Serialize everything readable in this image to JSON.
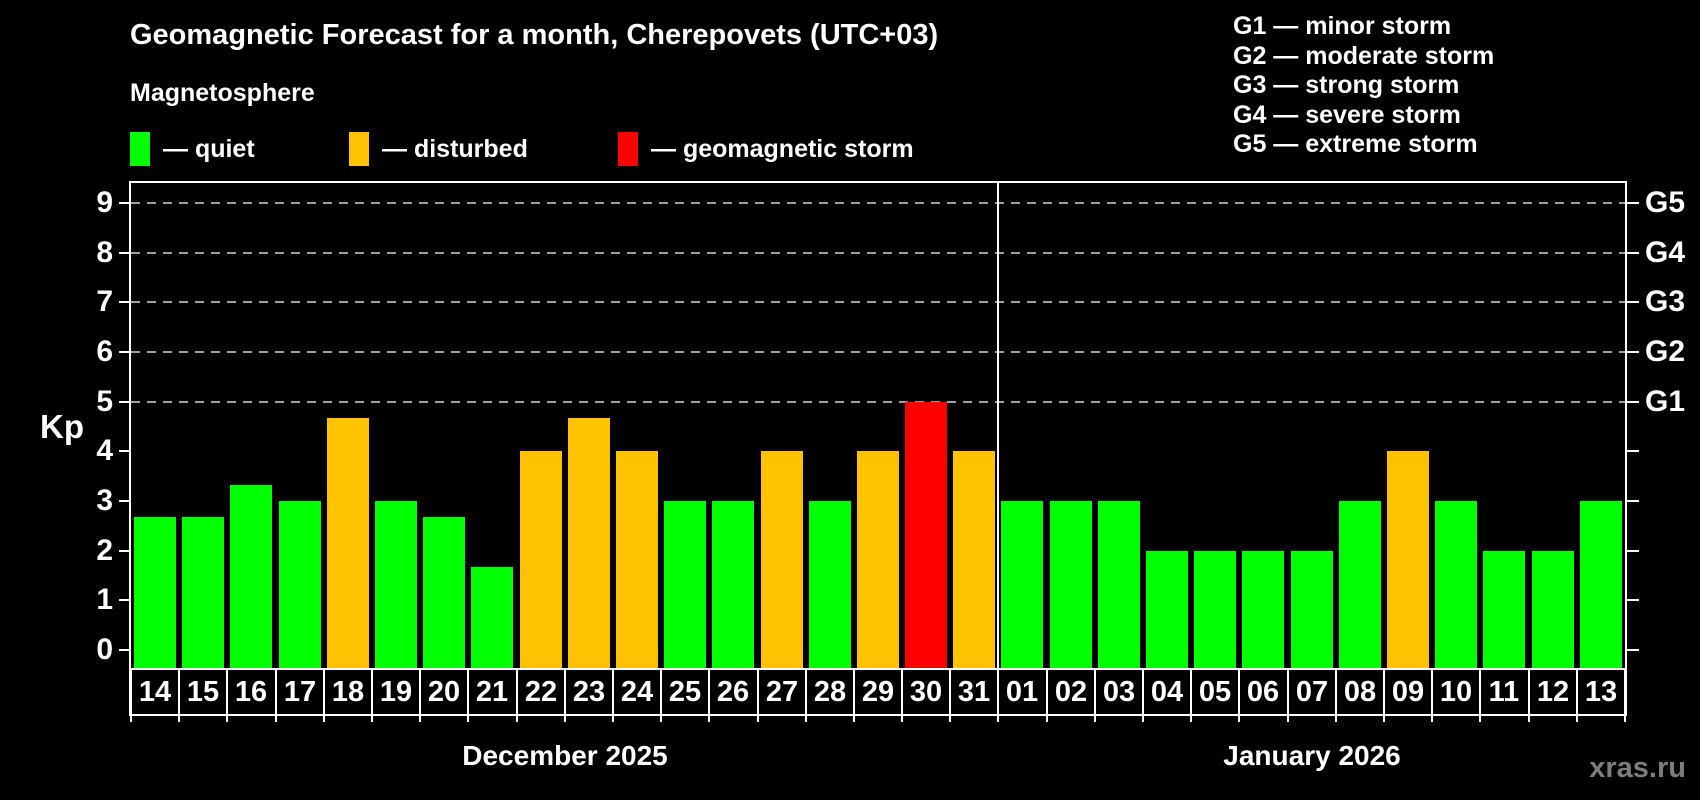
{
  "title": "Geomagnetic Forecast for a month, Cherepovets (UTC+03)",
  "subtitle": "Magnetosphere",
  "legend": {
    "items": [
      {
        "label": "— quiet",
        "status": "quiet",
        "color": "#00ff00"
      },
      {
        "label": "— disturbed",
        "status": "disturbed",
        "color": "#ffc200"
      },
      {
        "label": "— geomagnetic storm",
        "status": "storm",
        "color": "#ff0000"
      }
    ]
  },
  "storm_legend": {
    "items": [
      "G1 — minor storm",
      "G2 — moderate storm",
      "G3 — strong storm",
      "G4 — severe storm",
      "G5 — extreme storm"
    ]
  },
  "watermark": "xras.ru",
  "chart_data": {
    "type": "bar",
    "title": "Geomagnetic Forecast for a month, Cherepovets (UTC+03)",
    "ylabel": "Kp",
    "ylim": [
      0,
      9.4
    ],
    "yticks": [
      0,
      1,
      2,
      3,
      4,
      5,
      6,
      7,
      8,
      9
    ],
    "grid": "dashed horizontal lines at Kp 5-9",
    "grid_levels": [
      5,
      6,
      7,
      8,
      9
    ],
    "legend_position": "top",
    "right_axis_labels": [
      {
        "value": 5,
        "label": "G1"
      },
      {
        "value": 6,
        "label": "G2"
      },
      {
        "value": 7,
        "label": "G3"
      },
      {
        "value": 8,
        "label": "G4"
      },
      {
        "value": 9,
        "label": "G5"
      }
    ],
    "colors": {
      "quiet": "#00ff00",
      "disturbed": "#ffc200",
      "storm": "#ff0000"
    },
    "months": [
      {
        "label": "December 2025",
        "days": [
          {
            "date": "14",
            "kp": 2.67,
            "status": "quiet"
          },
          {
            "date": "15",
            "kp": 2.67,
            "status": "quiet"
          },
          {
            "date": "16",
            "kp": 3.33,
            "status": "quiet"
          },
          {
            "date": "17",
            "kp": 3,
            "status": "quiet"
          },
          {
            "date": "18",
            "kp": 4.67,
            "status": "disturbed"
          },
          {
            "date": "19",
            "kp": 3,
            "status": "quiet"
          },
          {
            "date": "20",
            "kp": 2.67,
            "status": "quiet"
          },
          {
            "date": "21",
            "kp": 1.67,
            "status": "quiet"
          },
          {
            "date": "22",
            "kp": 4,
            "status": "disturbed"
          },
          {
            "date": "23",
            "kp": 4.67,
            "status": "disturbed"
          },
          {
            "date": "24",
            "kp": 4,
            "status": "disturbed"
          },
          {
            "date": "25",
            "kp": 3,
            "status": "quiet"
          },
          {
            "date": "26",
            "kp": 3,
            "status": "quiet"
          },
          {
            "date": "27",
            "kp": 4,
            "status": "disturbed"
          },
          {
            "date": "28",
            "kp": 3,
            "status": "quiet"
          },
          {
            "date": "29",
            "kp": 4,
            "status": "disturbed"
          },
          {
            "date": "30",
            "kp": 5,
            "status": "storm"
          },
          {
            "date": "31",
            "kp": 4,
            "status": "disturbed"
          }
        ]
      },
      {
        "label": "January 2026",
        "days": [
          {
            "date": "01",
            "kp": 3,
            "status": "quiet"
          },
          {
            "date": "02",
            "kp": 3,
            "status": "quiet"
          },
          {
            "date": "03",
            "kp": 3,
            "status": "quiet"
          },
          {
            "date": "04",
            "kp": 2,
            "status": "quiet"
          },
          {
            "date": "05",
            "kp": 2,
            "status": "quiet"
          },
          {
            "date": "06",
            "kp": 2,
            "status": "quiet"
          },
          {
            "date": "07",
            "kp": 2,
            "status": "quiet"
          },
          {
            "date": "08",
            "kp": 3,
            "status": "quiet"
          },
          {
            "date": "09",
            "kp": 4,
            "status": "disturbed"
          },
          {
            "date": "10",
            "kp": 3,
            "status": "quiet"
          },
          {
            "date": "11",
            "kp": 2,
            "status": "quiet"
          },
          {
            "date": "12",
            "kp": 2,
            "status": "quiet"
          },
          {
            "date": "13",
            "kp": 3,
            "status": "quiet"
          }
        ]
      }
    ]
  }
}
